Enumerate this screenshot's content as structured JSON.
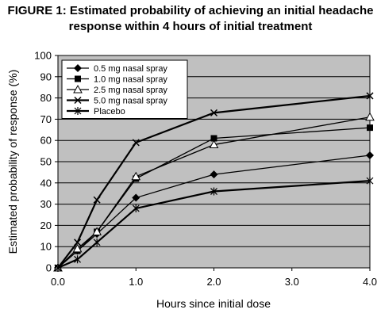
{
  "chart_data": {
    "type": "line",
    "title_lines": [
      "FIGURE 1: Estimated probability of achieving an initial headache",
      "response within 4 hours of initial treatment"
    ],
    "xlabel": "Hours since initial dose",
    "ylabel": "Estimated probability of response (%)",
    "xlim": [
      0,
      4
    ],
    "ylim": [
      0,
      100
    ],
    "x_ticks": [
      "0.0",
      "1.0",
      "2.0",
      "3.0",
      "4.0"
    ],
    "y_ticks": [
      "0",
      "10",
      "20",
      "30",
      "40",
      "50",
      "60",
      "70",
      "80",
      "90",
      "100"
    ],
    "grid": "horizontal",
    "plot_background": "#c0c0c0",
    "legend_position": "top-left",
    "series": [
      {
        "name": "0.5 mg nasal spray",
        "marker": "diamond",
        "x": [
          0,
          0.25,
          0.5,
          1,
          2,
          4
        ],
        "y": [
          0,
          8,
          16,
          33,
          44,
          53
        ]
      },
      {
        "name": "1.0 mg nasal spray",
        "marker": "square",
        "x": [
          0,
          0.25,
          0.5,
          1,
          2,
          4
        ],
        "y": [
          0,
          8,
          17,
          42,
          61,
          66
        ]
      },
      {
        "name": "2.5 mg nasal spray",
        "marker": "triangle",
        "x": [
          0,
          0.25,
          0.5,
          1,
          2,
          4
        ],
        "y": [
          0,
          9,
          17,
          43,
          58,
          71
        ]
      },
      {
        "name": "5.0 mg nasal spray",
        "marker": "x",
        "x": [
          0,
          0.25,
          0.5,
          1,
          2,
          4
        ],
        "y": [
          0,
          12,
          32,
          59,
          73,
          81
        ]
      },
      {
        "name": "Placebo",
        "marker": "star",
        "x": [
          0,
          0.25,
          0.5,
          1,
          2,
          4
        ],
        "y": [
          0,
          4,
          12,
          28,
          36,
          41
        ]
      }
    ]
  }
}
